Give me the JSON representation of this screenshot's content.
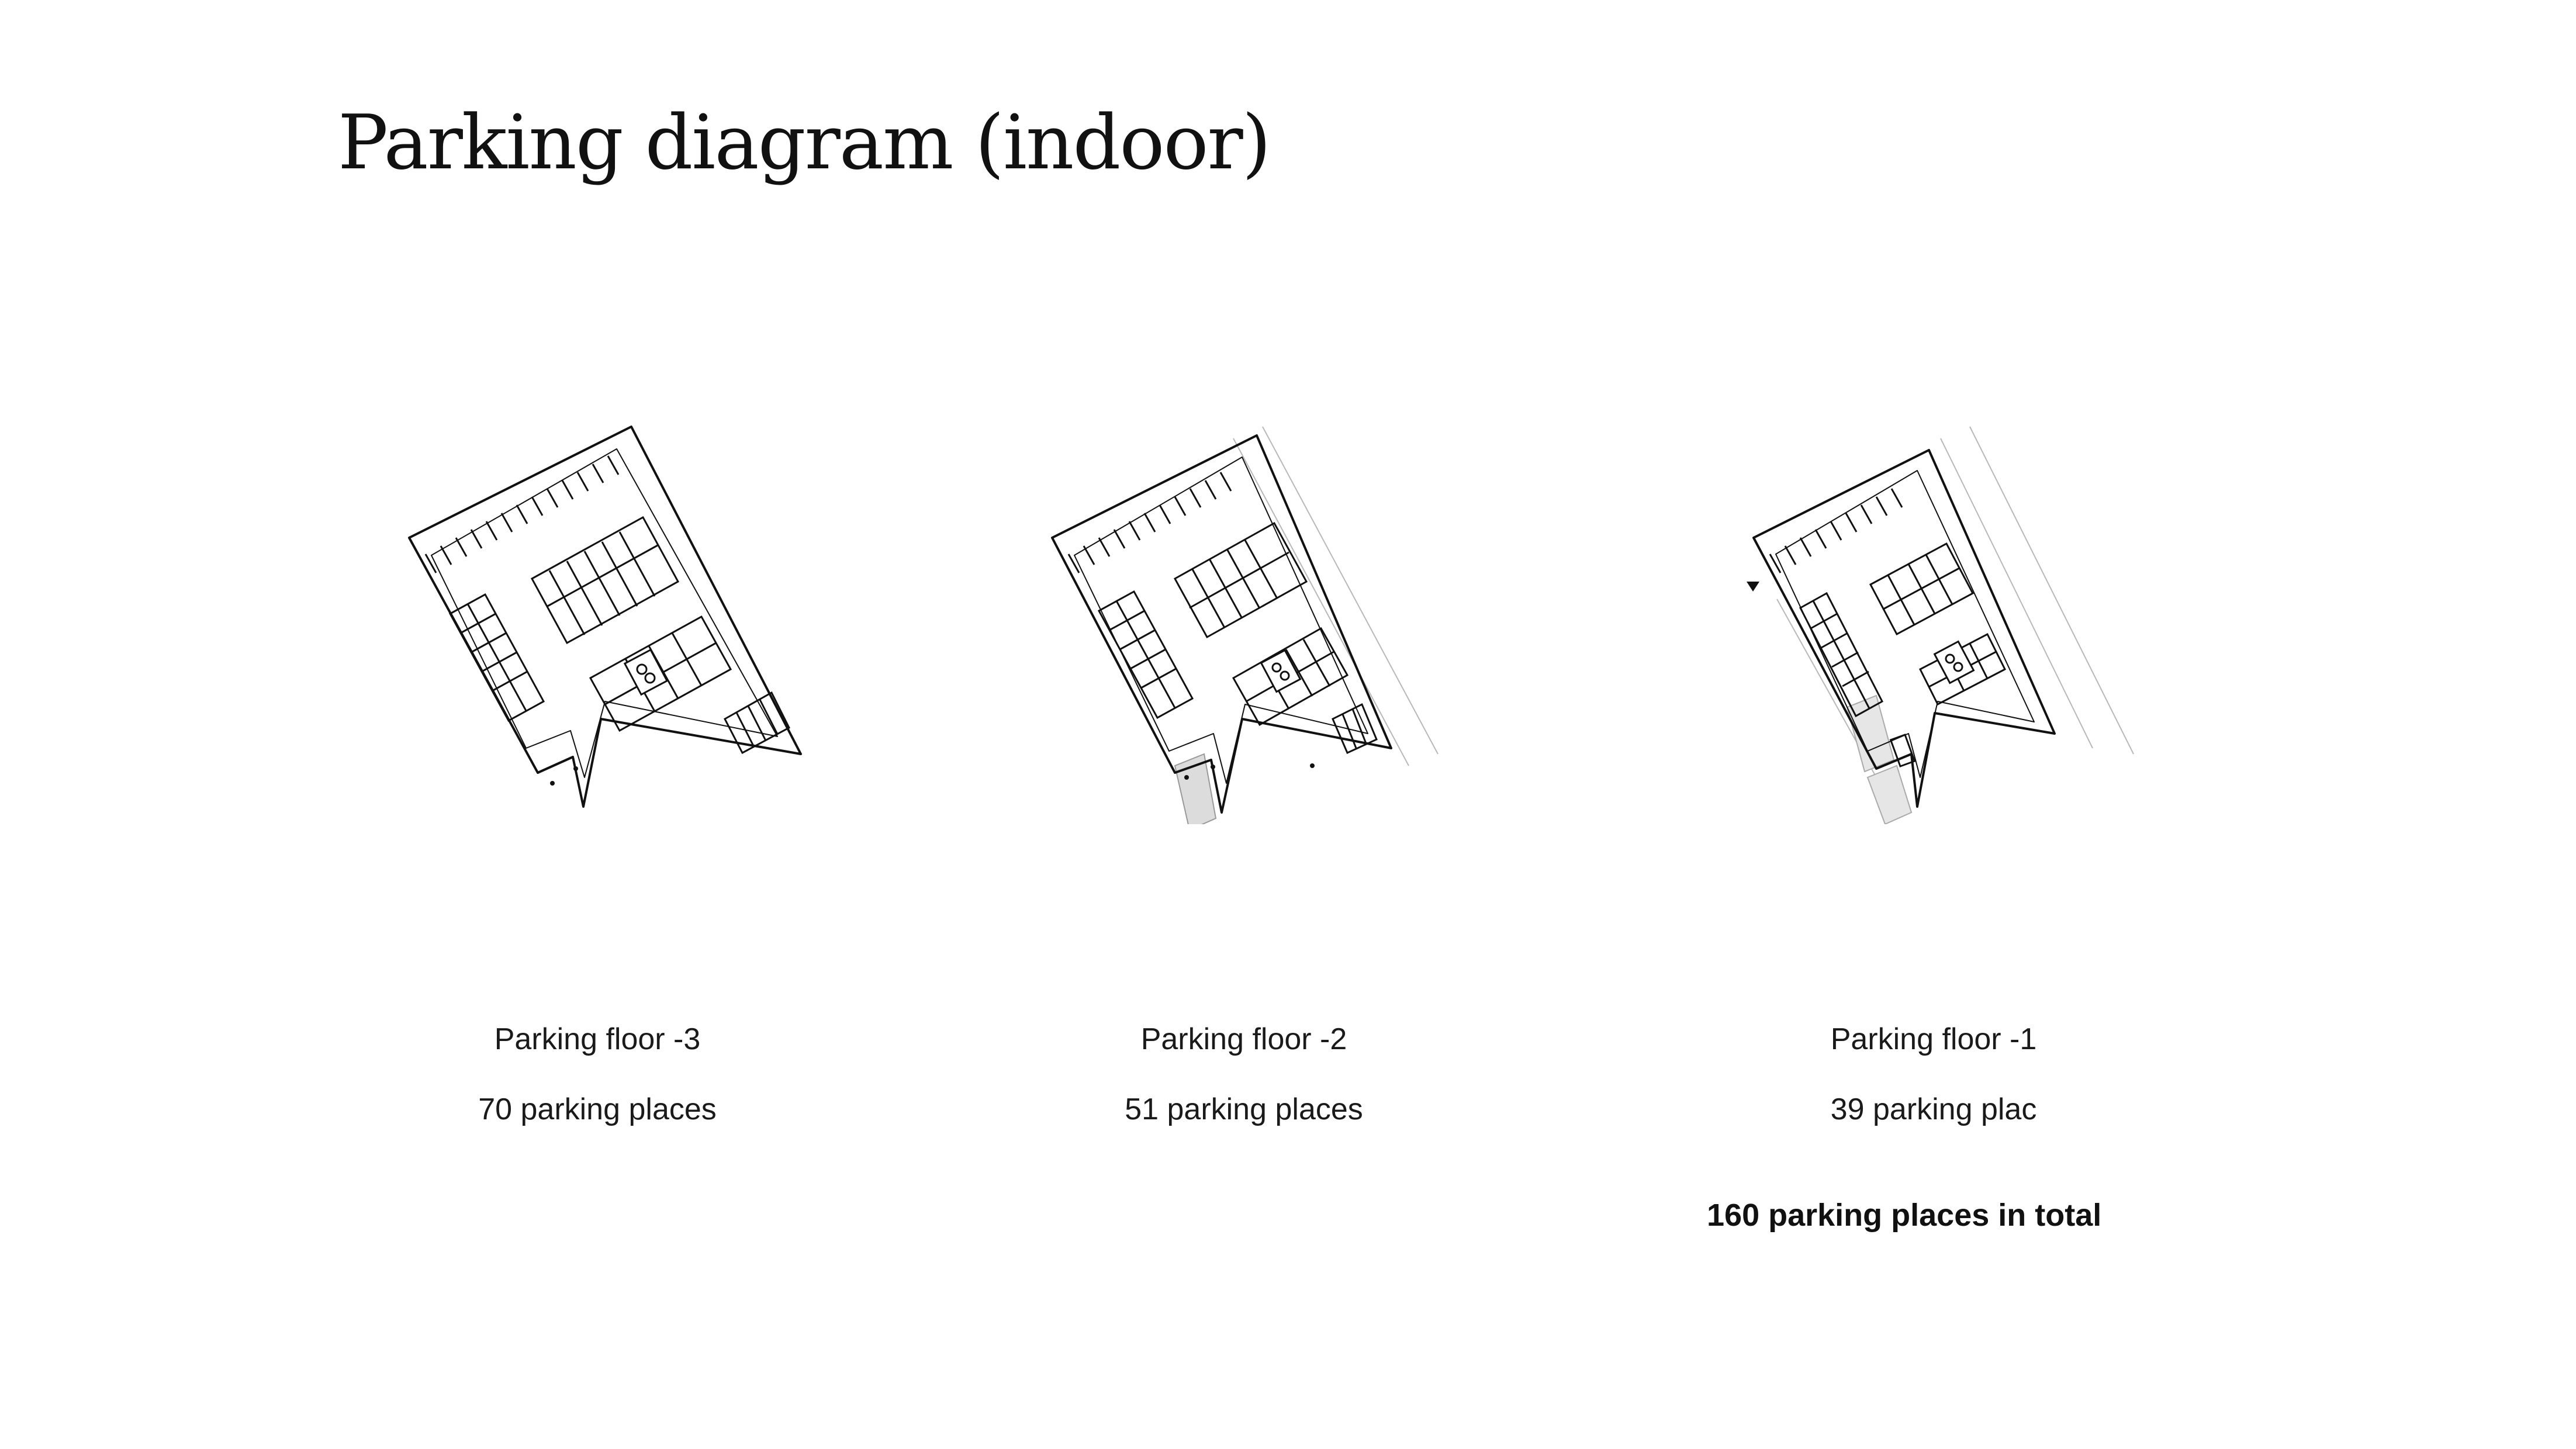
{
  "title": "Parking diagram (indoor)",
  "floors": [
    {
      "name": "Parking floor -3",
      "places": "70 parking places"
    },
    {
      "name": "Parking floor -2",
      "places": "51 parking places"
    },
    {
      "name": "Parking floor -1",
      "places": "39 parking plac"
    }
  ],
  "total": "160 parking places in total",
  "colors": {
    "line": "#111111",
    "faint": "#b8b8b8",
    "fill": "#dcdcdc",
    "background": "#ffffff"
  }
}
